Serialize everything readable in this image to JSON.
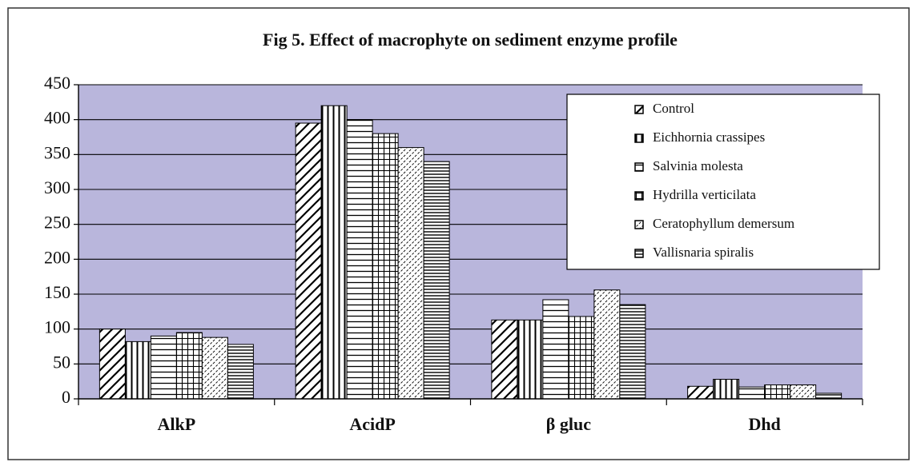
{
  "chart_data": {
    "type": "bar",
    "title": "Fig 5. Effect of macrophyte on sediment enzyme profile",
    "categories": [
      "AlkP",
      "AcidP",
      "β gluc",
      "Dhd"
    ],
    "series": [
      {
        "name": "Control",
        "color": "#000000",
        "pattern": "diagonal",
        "values": [
          100,
          395,
          113,
          18
        ]
      },
      {
        "name": "Eichhornia crassipes",
        "color": "#000000",
        "pattern": "vertical",
        "values": [
          82,
          420,
          113,
          28
        ]
      },
      {
        "name": "Salvinia molesta",
        "color": "#000000",
        "pattern": "horizontal",
        "values": [
          90,
          400,
          142,
          17
        ]
      },
      {
        "name": "Hydrilla verticilata",
        "color": "#000000",
        "pattern": "grid",
        "values": [
          95,
          380,
          118,
          20
        ]
      },
      {
        "name": "Ceratophyllum demersum",
        "color": "#000000",
        "pattern": "fine-diagonal",
        "values": [
          88,
          360,
          156,
          20
        ]
      },
      {
        "name": "Vallisnaria spiralis",
        "color": "#000000",
        "pattern": "dense-horizontal",
        "values": [
          78,
          340,
          135,
          8
        ]
      }
    ],
    "ylim": [
      0,
      450
    ],
    "yticks": [
      0,
      50,
      100,
      150,
      200,
      250,
      300,
      350,
      400,
      450
    ],
    "grid": true,
    "legend": "top-right",
    "plot_background": "#b9b6dc"
  }
}
